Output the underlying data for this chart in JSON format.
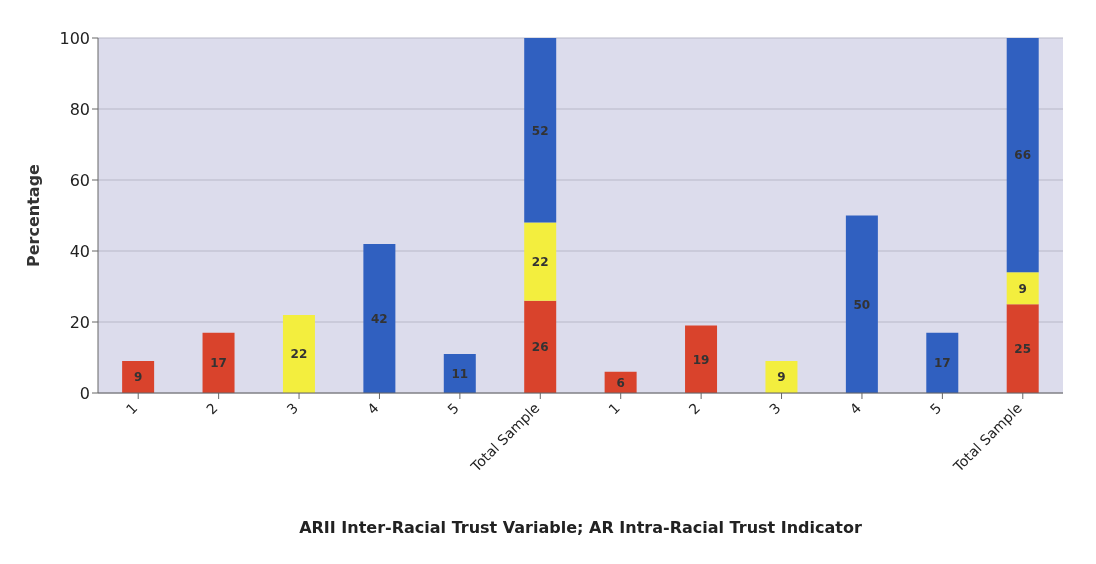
{
  "chart_data": {
    "type": "bar",
    "stacked": true,
    "ylabel": "Percentage",
    "xlabel": "ARII Inter-Racial Trust Variable; AR Intra-Racial Trust Indicator",
    "categories": [
      "1",
      "2",
      "3",
      "4",
      "5",
      "Total Sample",
      "1",
      "2",
      "3",
      "4",
      "5",
      "Total Sample"
    ],
    "series": [
      {
        "color": "#d9432c",
        "values": [
          9,
          17,
          null,
          null,
          null,
          26,
          6,
          19,
          null,
          null,
          null,
          25
        ]
      },
      {
        "color": "#f3ee3e",
        "values": [
          null,
          null,
          22,
          null,
          null,
          22,
          null,
          null,
          9,
          null,
          null,
          9
        ]
      },
      {
        "color": "#3060c0",
        "values": [
          null,
          null,
          null,
          42,
          11,
          52,
          null,
          null,
          null,
          50,
          17,
          66
        ]
      }
    ],
    "ylim": [
      0,
      100
    ],
    "yticks": [
      0,
      20,
      40,
      60,
      80,
      100
    ],
    "grid": "y",
    "data_labels": true
  }
}
